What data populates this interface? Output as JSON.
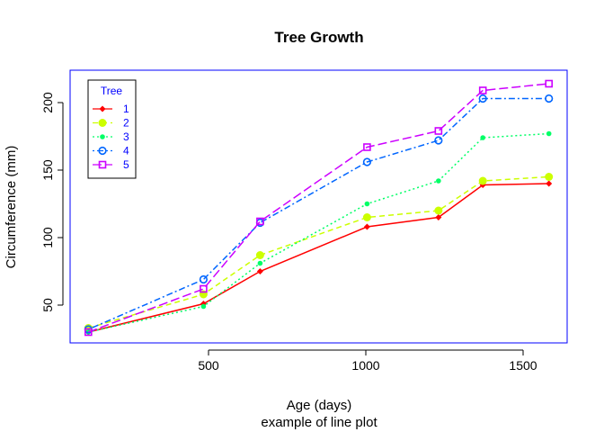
{
  "chart_data": {
    "type": "line",
    "title": "Tree Growth",
    "xlabel": "Age (days)",
    "ylabel": "Circumference (mm)",
    "subtitle": "example of line plot",
    "x": [
      118,
      484,
      664,
      1004,
      1231,
      1372,
      1582
    ],
    "xlim": [
      60,
      1640
    ],
    "ylim": [
      22,
      224
    ],
    "xticks": [
      500,
      1000,
      1500
    ],
    "yticks": [
      50,
      100,
      150,
      200
    ],
    "grid": false,
    "legend": {
      "title": "Tree",
      "placement": "top-left",
      "border_color": "#000000",
      "text_color": "#0000ff"
    },
    "box_color": "#0000ff",
    "series": [
      {
        "name": "1",
        "color": "#ff0000",
        "linestyle": "solid",
        "marker": "diamond",
        "values": [
          30,
          51,
          75,
          108,
          115,
          139,
          140
        ]
      },
      {
        "name": "2",
        "color": "#ccff00",
        "linestyle": "dashed",
        "marker": "circle-large",
        "values": [
          33,
          58,
          87,
          115,
          120,
          142,
          145
        ]
      },
      {
        "name": "3",
        "color": "#00ff66",
        "linestyle": "dotted",
        "marker": "dot",
        "values": [
          30,
          49,
          81,
          125,
          142,
          174,
          177
        ]
      },
      {
        "name": "4",
        "color": "#0066ff",
        "linestyle": "dotdash",
        "marker": "open-circle",
        "values": [
          32,
          69,
          111,
          156,
          172,
          203,
          203
        ]
      },
      {
        "name": "5",
        "color": "#cc00ff",
        "linestyle": "longdash",
        "marker": "open-square",
        "values": [
          30,
          62,
          112,
          167,
          179,
          209,
          214
        ]
      }
    ]
  }
}
